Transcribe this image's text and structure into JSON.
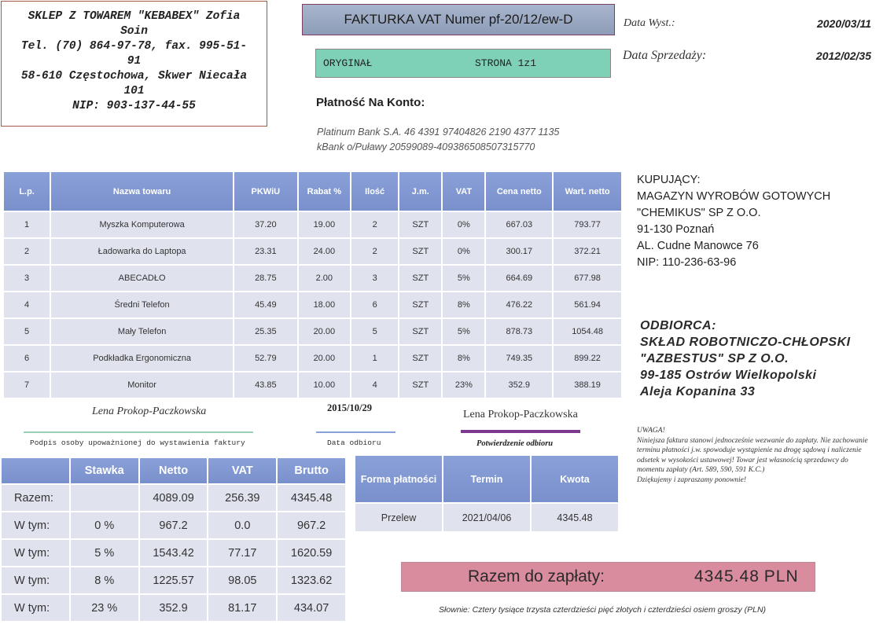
{
  "seller": {
    "lines": [
      "SKLEP Z TOWAREM \"KEBABEX\" Zofia",
      "Soin",
      "Tel. (70) 864-97-78, fax. 995-51-",
      "91",
      "58-610 Częstochowa, Skwer Niecała",
      "101",
      "NIP: 903-137-44-55"
    ]
  },
  "invoice": {
    "title": "FAKTURKA VAT Numer pf-20/12/ew-D",
    "original": "ORYGINAŁ",
    "page": "STRONA 1z1",
    "issue_label": "Data Wyst.:",
    "issue_date": "2020/03/11",
    "sale_label": "Data Sprzedaży:",
    "sale_date": "2012/02/35"
  },
  "payment": {
    "heading": "Płatność  Na Konto:",
    "bank1": "Platinum Bank S.A. 46 4391 97404826 2190 4377 1135",
    "bank2": "kBank  o/Puławy 20599089-409386508507315770"
  },
  "items": {
    "headers": [
      "L.p.",
      "Nazwa towaru",
      "PKWiU",
      "Rabat %",
      "Ilość",
      "J.m.",
      "VAT",
      "Cena netto",
      "Wart. netto"
    ],
    "rows": [
      [
        "1",
        "Myszka Komputerowa",
        "37.20",
        "19.00",
        "2",
        "SZT",
        "0%",
        "667.03",
        "793.77"
      ],
      [
        "2",
        "Ładowarka do Laptopa",
        "23.31",
        "24.00",
        "2",
        "SZT",
        "0%",
        "300.17",
        "372.21"
      ],
      [
        "3",
        "ABECADŁO",
        "28.75",
        "2.00",
        "3",
        "SZT",
        "5%",
        "664.69",
        "677.98"
      ],
      [
        "4",
        "Średni Telefon",
        "45.49",
        "18.00",
        "6",
        "SZT",
        "8%",
        "476.22",
        "561.94"
      ],
      [
        "5",
        "Mały Telefon",
        "25.35",
        "20.00",
        "5",
        "SZT",
        "5%",
        "878.73",
        "1054.48"
      ],
      [
        "6",
        "Podkładka Ergonomiczna",
        "52.79",
        "20.00",
        "1",
        "SZT",
        "8%",
        "749.35",
        "899.22"
      ],
      [
        "7",
        "Monitor",
        "43.85",
        "10.00",
        "4",
        "SZT",
        "23%",
        "352.9",
        "388.19"
      ]
    ]
  },
  "buyer": {
    "lines": [
      "KUPUJĄCY:",
      "MAGAZYN WYROBÓW  GOTOWYCH",
      "\"CHEMIKUS\" SP Z O.O.",
      "91-130 Poznań",
      "AL. Cudne Manowce  76",
      "NIP: 110-236-63-96"
    ]
  },
  "receiver": {
    "lines": [
      "ODBIORCA:",
      "SKŁAD ROBOTNICZO-CHŁOPSKI",
      "\"AZBESTUS\" SP Z O.O.",
      "99-185  Ostrów  Wielkopolski",
      "Aleja Kopanina 33"
    ]
  },
  "signatures": {
    "issuer_name": "Lena Prokop-Paczkowska",
    "issuer_caption": "Podpis osoby upoważnionej do wystawienia faktury",
    "receipt_date": "2015/10/29",
    "receipt_date_caption": "Data odbioru",
    "receiver_name": "Lena Prokop-Paczkowska",
    "receiver_caption": "Potwierdzenie odbioru"
  },
  "note": {
    "lines": [
      "UWAGA!",
      "Niniejsza faktura stanowi jednocześnie wezwanie do zapłaty. Nie zachowanie terminu płatności j.w. spowoduje wystąpienie na drogę sądową i naliczenie odsetek w wysokości ustawowej! Towar jest własnością sprzedawcy do momentu zapłaty (Art. 589, 590, 591 K.C.)",
      "Dziękujemy i zapraszamy ponownie!"
    ]
  },
  "vat_summary": {
    "headers": [
      "",
      "Stawka",
      "Netto",
      "VAT",
      "Brutto"
    ],
    "rows": [
      [
        "Razem:",
        "",
        "4089.09",
        "256.39",
        "4345.48"
      ],
      [
        "W tym:",
        "0 %",
        "967.2",
        "0.0",
        "967.2"
      ],
      [
        "W tym:",
        "5 %",
        "1543.42",
        "77.17",
        "1620.59"
      ],
      [
        "W tym:",
        "8 %",
        "1225.57",
        "98.05",
        "1323.62"
      ],
      [
        "W tym:",
        "23 %",
        "352.9",
        "81.17",
        "434.07"
      ]
    ]
  },
  "payment_terms": {
    "headers": [
      "Forma płatności",
      "Termin",
      "Kwota"
    ],
    "row": [
      "Przelew",
      "2021/04/06",
      "4345.48"
    ]
  },
  "total": {
    "label": "Razem do zapłaty:",
    "amount": "4345.48",
    "currency": "PLN",
    "words": "Słownie:  Cztery tysiące trzysta czterdzieści pięć złotych i czterdzieści osiem groszy (PLN)"
  },
  "colors": {
    "table_header": "#7a90cc",
    "table_cell": "#e0e3ee",
    "original_band": "#7ed0b6",
    "title_band": "#8d9cb8",
    "total_band": "#d98c9d",
    "receiver_line": "#7b3a8e"
  }
}
